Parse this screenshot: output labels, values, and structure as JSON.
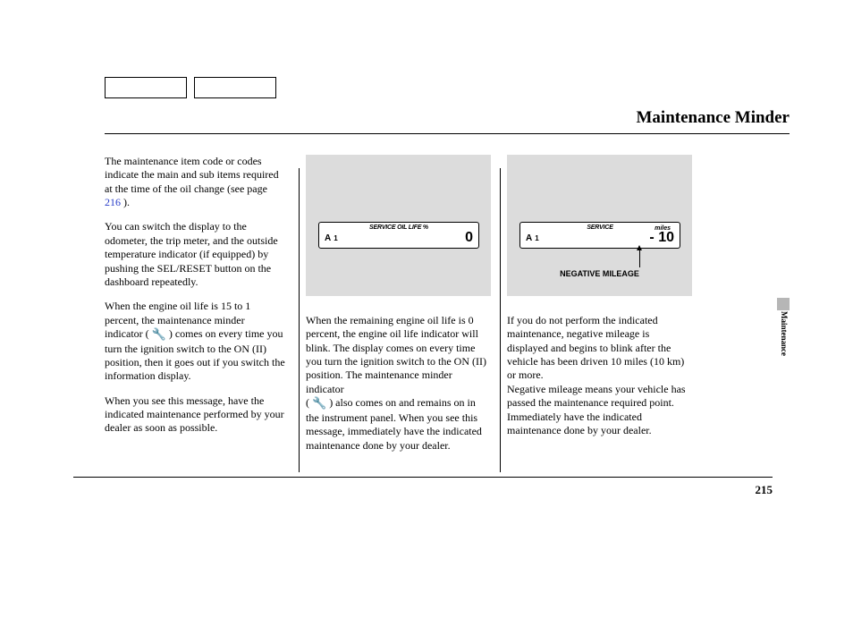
{
  "header": {
    "title": "Maintenance Minder"
  },
  "col1": {
    "p1a": "The maintenance item code or codes indicate the main and sub items required at the time of the oil change (see page ",
    "p1link": "216",
    "p1b": " ).",
    "p2": "You can switch the display to the odometer, the trip meter, and the outside temperature indicator (if equipped) by pushing the SEL/RESET button on the dashboard repeatedly.",
    "p3a": "When the engine oil life is 15 to 1 percent, the maintenance minder indicator ( ",
    "p3b": " ) comes on every time you turn the ignition switch to the ON (II) position, then it goes out if you switch the information display.",
    "p4": "When you see this message, have the indicated maintenance performed by your dealer as soon as possible."
  },
  "col2": {
    "lcd": {
      "label": "SERVICE OIL LIFE %",
      "left_a": "A",
      "left_b": "1",
      "value": "0"
    },
    "p1a": "When the remaining engine oil life is 0 percent, the engine oil life indicator will blink. The display comes on every time you turn the ignition switch to the ON (II) position. The maintenance minder indicator",
    "p1b": "( ",
    "p1c": " ) also comes on and remains on in the instrument panel. When you see this message, immediately have the indicated maintenance done by your dealer."
  },
  "col3": {
    "lcd": {
      "label": "SERVICE",
      "unit": "miles",
      "left_a": "A",
      "left_b": "1",
      "value": "- 10"
    },
    "neg_label": "NEGATIVE MILEAGE",
    "p1": "If you do not perform the indicated maintenance, negative mileage is displayed and begins to blink after the vehicle has been driven 10 miles (10 km) or more.",
    "p2": "Negative mileage means your vehicle has passed the maintenance required point.",
    "p3": "Immediately have the indicated maintenance done by your dealer."
  },
  "side": {
    "section": "Maintenance"
  },
  "page_number": "215"
}
